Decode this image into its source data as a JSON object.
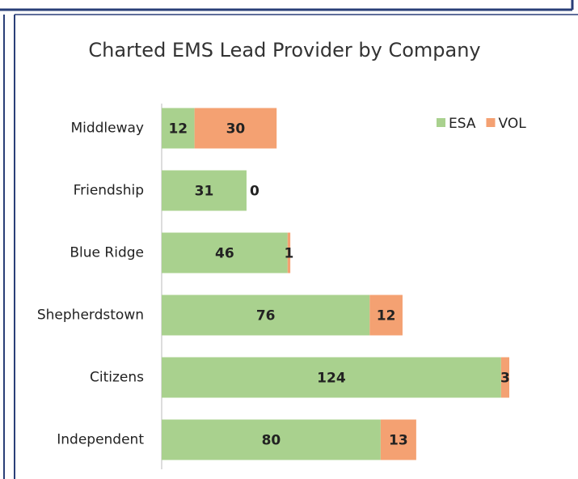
{
  "chart_data": {
    "type": "bar",
    "orientation": "horizontal",
    "stacked": true,
    "title": "Charted EMS Lead Provider by Company",
    "categories": [
      "Middleway",
      "Friendship",
      "Blue Ridge",
      "Shepherdstown",
      "Citizens",
      "Independent"
    ],
    "series": [
      {
        "name": "ESA",
        "color": "#a9d18e",
        "values": [
          12,
          31,
          46,
          76,
          124,
          80
        ]
      },
      {
        "name": "VOL",
        "color": "#f4a172",
        "values": [
          30,
          0,
          1,
          12,
          3,
          13
        ]
      }
    ],
    "legend": "top-right"
  }
}
